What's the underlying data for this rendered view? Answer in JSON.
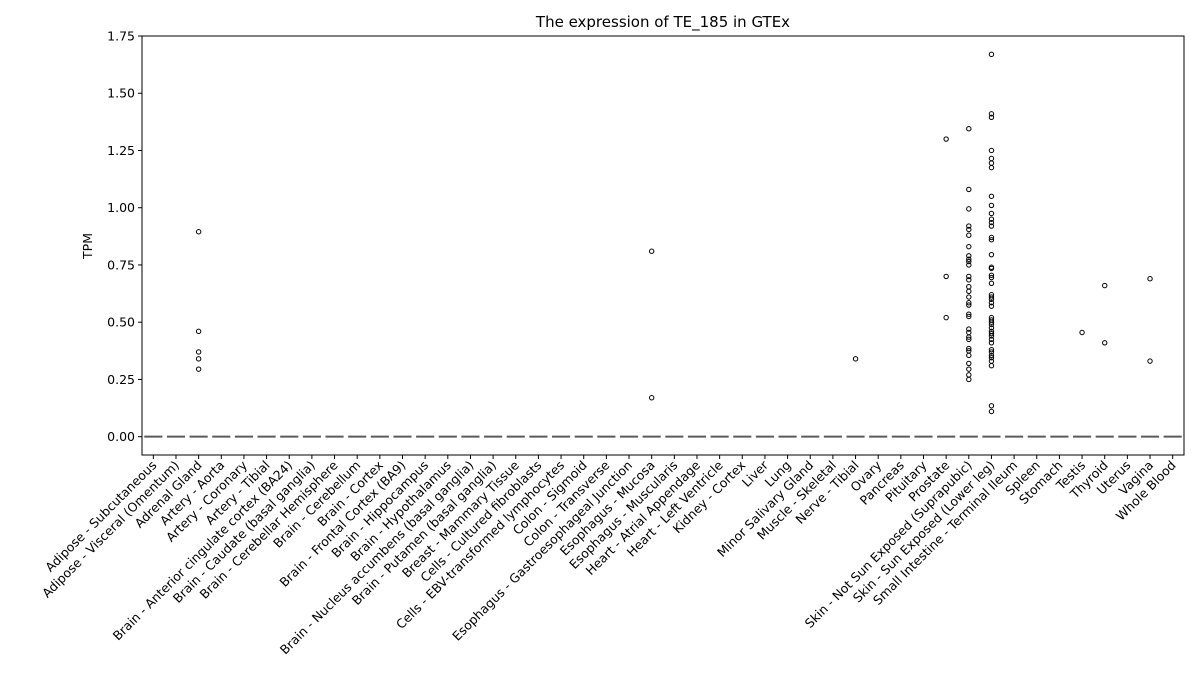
{
  "chart_data": {
    "type": "box",
    "title": "The expression of TE_185 in GTEx",
    "ylabel": "TPM",
    "xlabel": "",
    "ylim": [
      -0.08,
      1.75
    ],
    "yticks": [
      0.0,
      0.25,
      0.5,
      0.75,
      1.0,
      1.25,
      1.5,
      1.75
    ],
    "ytick_labels": [
      "0.00",
      "0.25",
      "0.50",
      "0.75",
      "1.00",
      "1.25",
      "1.50",
      "1.75"
    ],
    "grid": false,
    "legend": "none",
    "colors": {
      "median": "#5a5a5a",
      "marker_edge": "#000000",
      "axis": "#000000"
    },
    "categories": [
      "Adipose - Subcutaneous",
      "Adipose - Visceral (Omentum)",
      "Adrenal Gland",
      "Artery - Aorta",
      "Artery - Coronary",
      "Artery - Tibial",
      "Brain - Anterior cingulate cortex (BA24)",
      "Brain - Caudate (basal ganglia)",
      "Brain - Cerebellar Hemisphere",
      "Brain - Cerebellum",
      "Brain - Cortex",
      "Brain - Frontal Cortex (BA9)",
      "Brain - Hippocampus",
      "Brain - Hypothalamus",
      "Brain - Nucleus accumbens (basal ganglia)",
      "Brain - Putamen (basal ganglia)",
      "Breast - Mammary Tissue",
      "Cells - Cultured fibroblasts",
      "Cells - EBV-transformed lymphocytes",
      "Colon - Sigmoid",
      "Colon - Transverse",
      "Esophagus - Gastroesophageal Junction",
      "Esophagus - Mucosa",
      "Esophagus - Muscularis",
      "Heart - Atrial Appendage",
      "Heart - Left Ventricle",
      "Kidney - Cortex",
      "Liver",
      "Lung",
      "Minor Salivary Gland",
      "Muscle - Skeletal",
      "Nerve - Tibial",
      "Ovary",
      "Pancreas",
      "Pituitary",
      "Prostate",
      "Skin - Not Sun Exposed (Suprapubic)",
      "Skin - Sun Exposed (Lower leg)",
      "Small Intestine - Terminal Ileum",
      "Spleen",
      "Stomach",
      "Testis",
      "Thyroid",
      "Uterus",
      "Vagina",
      "Whole Blood"
    ],
    "medians": [
      0,
      0,
      0,
      0,
      0,
      0,
      0,
      0,
      0,
      0,
      0,
      0,
      0,
      0,
      0,
      0,
      0,
      0,
      0,
      0,
      0,
      0,
      0,
      0,
      0,
      0,
      0,
      0,
      0,
      0,
      0,
      0,
      0,
      0,
      0,
      0,
      0,
      0,
      0,
      0,
      0,
      0,
      0,
      0,
      0,
      0
    ],
    "outliers": {
      "Adrenal Gland": [
        0.895,
        0.46,
        0.37,
        0.34,
        0.295
      ],
      "Esophagus - Mucosa": [
        0.81,
        0.17
      ],
      "Nerve - Tibial": [
        0.34
      ],
      "Prostate": [
        1.3,
        0.7,
        0.52
      ],
      "Skin - Not Sun Exposed (Suprapubic)": [
        1.345,
        1.08,
        0.995,
        0.92,
        0.905,
        0.88,
        0.83,
        0.79,
        0.775,
        0.765,
        0.75,
        0.7,
        0.685,
        0.655,
        0.635,
        0.61,
        0.585,
        0.575,
        0.535,
        0.525,
        0.47,
        0.455,
        0.435,
        0.425,
        0.385,
        0.375,
        0.355,
        0.32,
        0.295,
        0.27,
        0.25
      ],
      "Skin - Sun Exposed (Lower leg)": [
        1.67,
        1.41,
        1.395,
        1.25,
        1.215,
        1.195,
        1.175,
        1.05,
        1.01,
        0.975,
        0.95,
        0.935,
        0.92,
        0.87,
        0.86,
        0.795,
        0.74,
        0.735,
        0.705,
        0.695,
        0.67,
        0.62,
        0.61,
        0.6,
        0.585,
        0.57,
        0.52,
        0.51,
        0.5,
        0.49,
        0.475,
        0.46,
        0.45,
        0.44,
        0.425,
        0.41,
        0.38,
        0.37,
        0.355,
        0.345,
        0.33,
        0.31,
        0.135,
        0.11
      ],
      "Testis": [
        0.455
      ],
      "Thyroid": [
        0.66,
        0.41
      ],
      "Vagina": [
        0.69,
        0.33
      ]
    }
  }
}
